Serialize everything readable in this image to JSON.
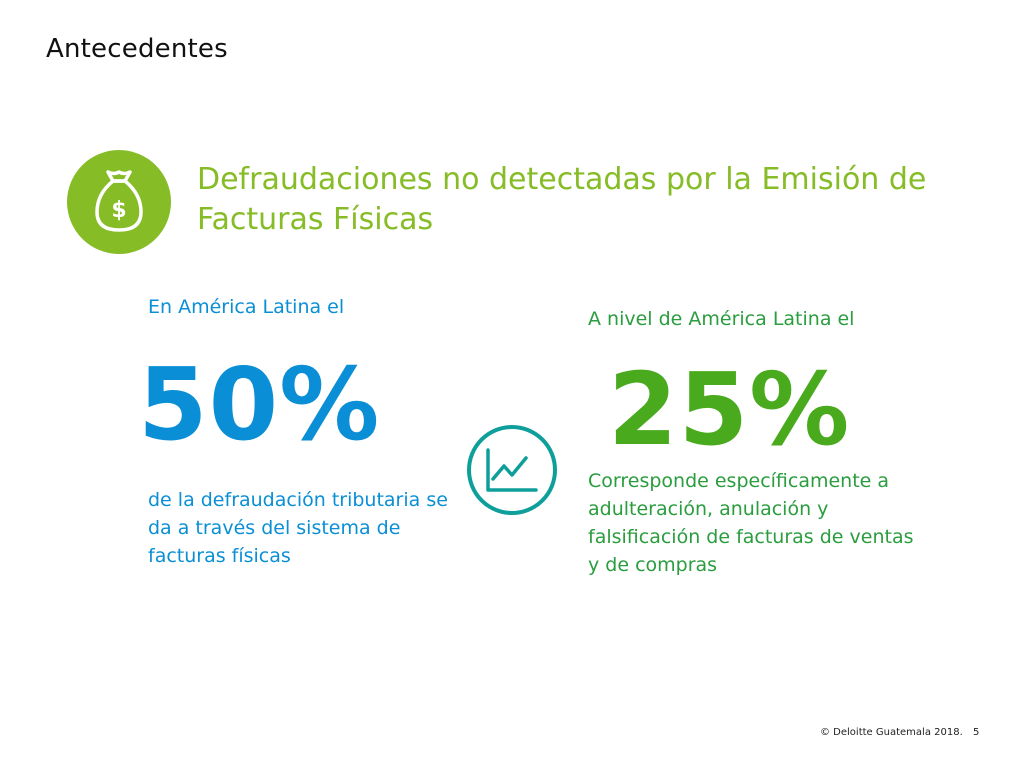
{
  "slide": {
    "title": "Antecedentes",
    "headline": "Defraudaciones no detectadas por la Emisión de Facturas Físicas"
  },
  "icons": {
    "money": "money-bag-icon",
    "chart": "line-chart-icon"
  },
  "colors": {
    "accent_green": "#86bc25",
    "blue": "#0a8fd6",
    "dark_green": "#2a9d3e",
    "teal": "#0f9f9b"
  },
  "left": {
    "intro": "En América Latina el",
    "value": "50%",
    "description": "de la defraudación tributaria se da a través del sistema de facturas físicas"
  },
  "right": {
    "intro": "A nivel de América Latina el",
    "value": "25%",
    "description": "Corresponde específicamente a adulteración, anulación y falsificación de facturas de ventas y de compras"
  },
  "footer": {
    "copyright": "© Deloitte Guatemala 2018.",
    "page_number": "5"
  }
}
